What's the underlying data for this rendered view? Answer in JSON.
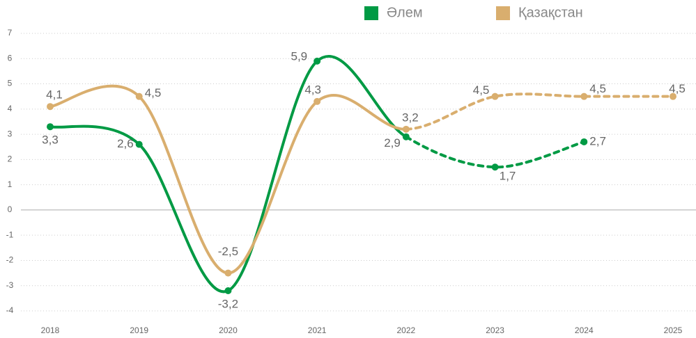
{
  "chart_data": {
    "type": "line",
    "categories": [
      "2018",
      "2019",
      "2020",
      "2021",
      "2022",
      "2023",
      "2024",
      "2025"
    ],
    "series": [
      {
        "name": "Әлем",
        "color": "#009a44",
        "values": [
          3.3,
          2.6,
          -3.2,
          5.9,
          2.9,
          1.7,
          2.7,
          null
        ],
        "value_labels": [
          "3,3",
          "2,6",
          "-3,2",
          "5,9",
          "2,9",
          "1,7",
          "2,7",
          null
        ]
      },
      {
        "name": "Қазақстан",
        "color": "#d9ae6e",
        "values": [
          4.1,
          4.5,
          -2.5,
          4.3,
          3.2,
          4.5,
          4.5,
          4.5
        ],
        "value_labels": [
          "4,1",
          "4,5",
          "-2,5",
          "4,3",
          "3,2",
          "4,5",
          "4,5",
          "4,5"
        ]
      }
    ],
    "ylim": [
      -4,
      7
    ],
    "yticks": [
      -4,
      -3,
      -2,
      -1,
      0,
      1,
      2,
      3,
      4,
      5,
      6,
      7
    ],
    "grid": true,
    "dashed_from": "2022",
    "legend": "top"
  }
}
